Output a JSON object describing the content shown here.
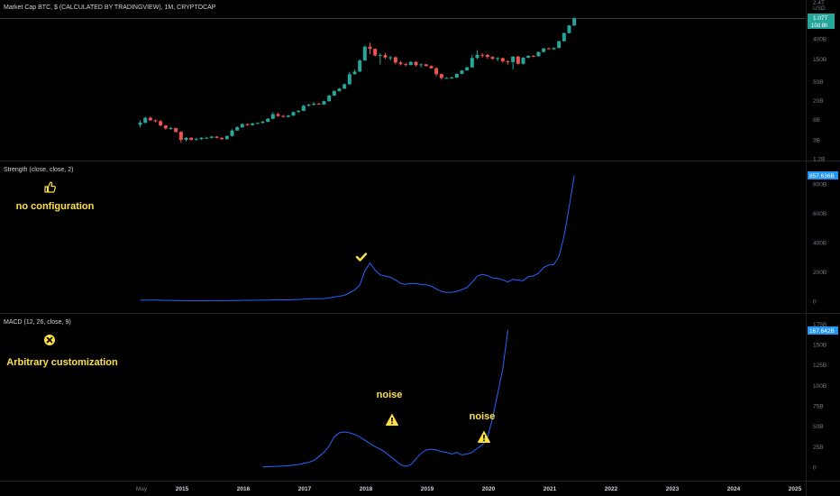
{
  "colors": {
    "background": "#000000",
    "up": "#26a69a",
    "down": "#ef5350",
    "line": "#2962ff",
    "axis_text": "#787b86",
    "separator": "#2a2e39",
    "annotation": "#fde047",
    "badge_teal": "#26a69a",
    "badge_blue": "#2196f3"
  },
  "price_pane": {
    "title": "Market Cap BTC, $ (CALCULATED BY TRADINGVIEW), 1M, CRYPTOCAP",
    "scale_unit": "USD",
    "top_tick": "2.4T",
    "ticks": [
      "400B",
      "150B",
      "50B",
      "20B",
      "8B",
      "3B",
      "1.2B"
    ],
    "last_badge_value": "1.07T",
    "last_badge_sub": "10d 8h"
  },
  "strength_pane": {
    "title": "Strength (close, close, 2)",
    "last_badge_value": "857.636B",
    "ticks": [
      "800B",
      "600B",
      "400B",
      "200B",
      "0"
    ],
    "annotation_icon": "thumbs-up-icon",
    "annotation_text": "no configuration",
    "peak_marker_icon": "checkmark-icon"
  },
  "macd_pane": {
    "title": "MACD (12, 26, close, 9)",
    "top_tick": "175B",
    "last_badge_value": "167.642B",
    "ticks": [
      "150B",
      "125B",
      "100B",
      "75B",
      "50B",
      "25B",
      "0"
    ],
    "annotation_icon": "x-circle-icon",
    "annotation_text": "Arbitrary customization",
    "noise_labels": [
      "noise",
      "noise"
    ],
    "warning_icon": "warning-icon"
  },
  "time_axis": {
    "labels": [
      "May",
      "2015",
      "2016",
      "2017",
      "2018",
      "2019",
      "2020",
      "2021",
      "2022",
      "2023",
      "2024",
      "2025"
    ]
  },
  "chart_data": [
    {
      "type": "candlestick",
      "title": "Market Cap BTC, $ (CALCULATED BY TRADINGVIEW), 1M, CRYPTOCAP",
      "scale": "log",
      "ylim": [
        1.2,
        2400
      ],
      "y_unit": "B USD",
      "x_start": "2014-05",
      "interval": "1M",
      "open": [
        6.2,
        6.9,
        8.7,
        7.7,
        7.4,
        6.0,
        5.2,
        5.3,
        4.4,
        3.0,
        3.3,
        3.0,
        3.1,
        3.3,
        3.3,
        3.5,
        3.3,
        3.1,
        3.6,
        4.7,
        5.5,
        6.4,
        6.1,
        6.6,
        6.8,
        7.2,
        8.3,
        10.4,
        9.5,
        9.1,
        9.7,
        11.5,
        12.2,
        15.6,
        16.4,
        17.2,
        16.6,
        19.5,
        25.5,
        31.7,
        35.7,
        44.2,
        72.0,
        81.6,
        140,
        273,
        246,
        178,
        181,
        162,
        163,
        127,
        117,
        112,
        130,
        111,
        116,
        107,
        96,
        72,
        60,
        60,
        61,
        73,
        86,
        100,
        158,
        184,
        183,
        166,
        152,
        157,
        135,
        129,
        169,
        119,
        160,
        175,
        171,
        211,
        251,
        242,
        257,
        356,
        528,
        759
      ],
      "close": [
        6.9,
        8.7,
        7.7,
        7.4,
        6.0,
        5.2,
        5.3,
        4.4,
        3.0,
        3.3,
        3.0,
        3.1,
        3.3,
        3.3,
        3.5,
        3.3,
        3.1,
        3.6,
        4.7,
        5.5,
        6.4,
        6.1,
        6.6,
        6.8,
        7.2,
        8.3,
        10.4,
        9.5,
        9.1,
        9.7,
        11.5,
        12.2,
        15.6,
        16.4,
        17.2,
        16.6,
        19.5,
        25.5,
        31.7,
        35.7,
        44.2,
        72.0,
        81.6,
        140,
        273,
        246,
        178,
        181,
        162,
        163,
        127,
        117,
        112,
        130,
        111,
        116,
        107,
        96,
        72,
        60,
        60,
        61,
        73,
        86,
        100,
        158,
        184,
        183,
        166,
        152,
        157,
        135,
        129,
        169,
        119,
        160,
        175,
        171,
        211,
        251,
        242,
        257,
        356,
        528,
        759,
        1070
      ],
      "high": [
        7.7,
        9.2,
        9.3,
        8.0,
        7.8,
        6.1,
        5.6,
        5.4,
        4.6,
        3.4,
        3.4,
        3.3,
        3.4,
        3.5,
        3.6,
        3.6,
        3.4,
        3.7,
        5.0,
        5.8,
        6.6,
        6.6,
        6.8,
        7.0,
        7.5,
        8.6,
        11.5,
        11.0,
        10.0,
        10.0,
        11.8,
        12.6,
        16.4,
        17.0,
        18.6,
        17.9,
        20.0,
        26.5,
        33.0,
        37.0,
        46.0,
        80.0,
        90.0,
        148,
        290,
        330,
        250,
        200,
        200,
        175,
        170,
        135,
        125,
        135,
        135,
        120,
        118,
        110,
        100,
        75,
        62,
        64,
        75,
        88,
        105,
        185,
        230,
        200,
        190,
        172,
        165,
        160,
        140,
        170,
        175,
        165,
        180,
        180,
        215,
        255,
        260,
        262,
        360,
        540,
        780,
        1150
      ],
      "low": [
        5.5,
        6.5,
        7.5,
        7.0,
        5.8,
        4.9,
        4.9,
        4.2,
        2.6,
        2.8,
        2.9,
        2.9,
        3.0,
        3.2,
        3.2,
        3.2,
        3.0,
        3.0,
        3.5,
        4.6,
        5.3,
        5.9,
        6.0,
        6.4,
        6.6,
        7.0,
        8.1,
        9.2,
        8.8,
        8.8,
        9.5,
        11.2,
        12.0,
        15.0,
        15.8,
        16.3,
        16.4,
        19.0,
        25.0,
        31.0,
        35.0,
        43.0,
        70.0,
        80.0,
        138,
        190,
        170,
        115,
        150,
        140,
        115,
        110,
        105,
        110,
        105,
        100,
        104,
        95,
        65,
        55,
        58,
        58,
        60,
        72,
        85,
        98,
        150,
        160,
        150,
        145,
        135,
        125,
        115,
        90,
        115,
        115,
        155,
        165,
        170,
        205,
        240,
        235,
        250,
        350,
        520,
        750
      ]
    },
    {
      "type": "line",
      "title": "Strength (close, close, 2)",
      "ylim": [
        0,
        900
      ],
      "y_unit": "B",
      "x_start": "2014-05",
      "interval": "1M",
      "series": [
        {
          "values": [
            6.9,
            7.8,
            8.2,
            7.6,
            6.7,
            5.6,
            5.3,
            4.9,
            3.7,
            3.2,
            3.2,
            3.1,
            3.2,
            3.3,
            3.4,
            3.4,
            3.2,
            3.4,
            4.1,
            5.1,
            6.0,
            6.3,
            6.4,
            6.7,
            7.0,
            7.8,
            9.1,
            9.9,
            9.3,
            9.4,
            10.6,
            11.9,
            14.0,
            16.0,
            16.8,
            16.9,
            18.1,
            22.5,
            28.6,
            33.7,
            40.0,
            58.1,
            76.8,
            110,
            206,
            260,
            212,
            180,
            172,
            163,
            145,
            122,
            115,
            121,
            121,
            114,
            112,
            102,
            84,
            66,
            60,
            61,
            67,
            80,
            93,
            129,
            171,
            184,
            175,
            159,
            155,
            146,
            132,
            149,
            144,
            140,
            168,
            173,
            191,
            231,
            247,
            250,
            307,
            442,
            644,
            858
          ]
        }
      ]
    },
    {
      "type": "line",
      "title": "MACD (12, 26, close, 9)",
      "ylim": [
        -10,
        175
      ],
      "y_unit": "B",
      "x_start": "2016-05",
      "interval": "1M",
      "series": [
        {
          "values": [
            0.3,
            0.5,
            0.8,
            1.0,
            1.3,
            1.8,
            2.5,
            3.3,
            4.5,
            6.0,
            8.0,
            13.0,
            18.0,
            26.0,
            37.0,
            42.0,
            43.0,
            42.0,
            40.0,
            37.0,
            33.0,
            29.0,
            25.0,
            22.0,
            18.0,
            13.0,
            8.0,
            3.0,
            1.0,
            3.0,
            10.0,
            17.0,
            21.0,
            22.0,
            21.0,
            19.0,
            18.0,
            16.0,
            18.0,
            15.0,
            16.0,
            18.0,
            23.0,
            27.0,
            36.0,
            60.0,
            90.0,
            120.0,
            167.6
          ]
        }
      ]
    }
  ]
}
